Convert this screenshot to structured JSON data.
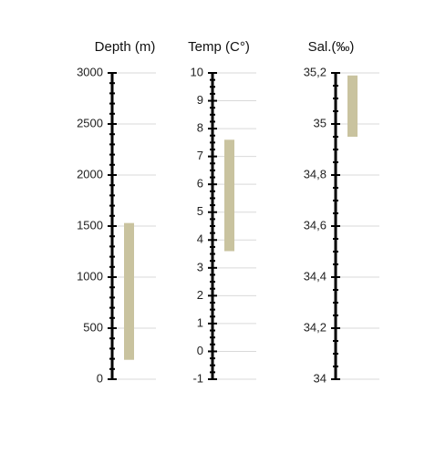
{
  "chart_data": [
    {
      "type": "range",
      "title": "Depth (m)",
      "ylim": [
        0,
        3000
      ],
      "yticks": [
        0,
        500,
        1000,
        1500,
        2000,
        2500,
        3000
      ],
      "minor_divisions": 5,
      "grid": true,
      "color": "#c9c39f",
      "low": 190,
      "high": 1530
    },
    {
      "type": "range",
      "title": "Temp (C°)",
      "ylim": [
        -1,
        10
      ],
      "yticks": [
        -1,
        0,
        1,
        2,
        3,
        4,
        5,
        6,
        7,
        8,
        9,
        10
      ],
      "minor_divisions": 4,
      "grid": true,
      "color": "#c9c39f",
      "low": 3.6,
      "high": 7.6
    },
    {
      "type": "range",
      "title": "Sal.(‰)",
      "ylim": [
        34,
        35.2
      ],
      "yticks": [
        34,
        {
          "value": 34.2,
          "label": "34,2"
        },
        {
          "value": 34.4,
          "label": "34,4"
        },
        {
          "value": 34.6,
          "label": "34,6"
        },
        {
          "value": 34.8,
          "label": "34,8"
        },
        35,
        {
          "value": 35.2,
          "label": "35,2"
        }
      ],
      "minor_divisions": 4,
      "grid": true,
      "color": "#c9c39f",
      "low": 34.95,
      "high": 35.19
    }
  ]
}
